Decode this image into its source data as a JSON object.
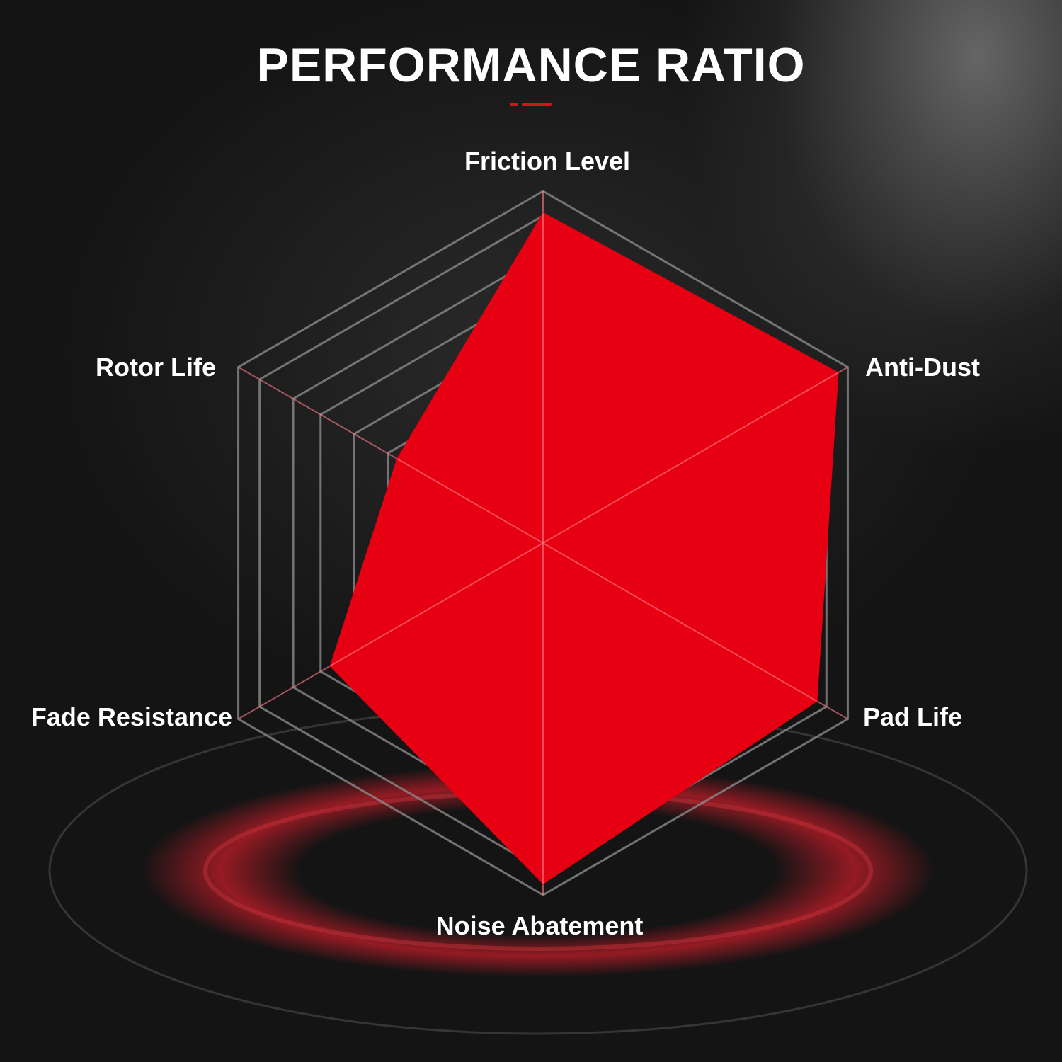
{
  "chart_data": {
    "type": "radar",
    "title": "PERFORMANCE RATIO",
    "axes": [
      "Friction Level",
      "Anti-Dust",
      "Pad Life",
      "Noise Abatement",
      "Fade Resistance",
      "Rotor Life"
    ],
    "values": [
      94,
      97,
      90,
      97,
      70,
      48
    ],
    "range": [
      0,
      100
    ],
    "grid_levels": [
      51,
      62,
      73,
      82,
      93,
      100
    ],
    "grid": true,
    "legend": "none"
  },
  "colors": {
    "fill": "#e60012",
    "grid": "#8a8a8a",
    "accent": "#d0161b",
    "text": "#ffffff"
  }
}
